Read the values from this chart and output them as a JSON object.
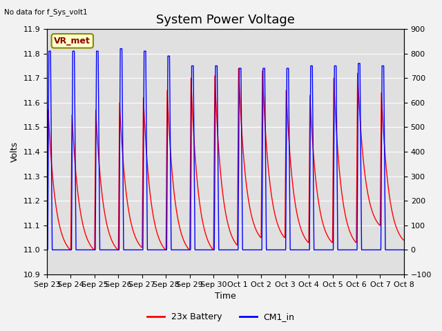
{
  "title": "System Power Voltage",
  "no_data_text": "No data for f_Sys_volt1",
  "xlabel": "Time",
  "ylabel": "Volts",
  "ylim": [
    10.9,
    11.9
  ],
  "ylim2": [
    -100,
    900
  ],
  "yticks": [
    10.9,
    11.0,
    11.1,
    11.2,
    11.3,
    11.4,
    11.5,
    11.6,
    11.7,
    11.8,
    11.9
  ],
  "yticks2": [
    -100,
    0,
    100,
    200,
    300,
    400,
    500,
    600,
    700,
    800,
    900
  ],
  "xtick_labels": [
    "Sep 23",
    "Sep 24",
    "Sep 25",
    "Sep 26",
    "Sep 27",
    "Sep 28",
    "Sep 29",
    "Sep 30",
    "Oct 1",
    "Oct 2",
    "Oct 3",
    "Oct 4",
    "Oct 5",
    "Oct 6",
    "Oct 7",
    "Oct 8"
  ],
  "vr_met_text": "VR_met",
  "legend": [
    "23x Battery",
    "CM1_in"
  ],
  "line_colors": [
    "red",
    "blue"
  ],
  "bg_color": "#e0e0e0",
  "title_fontsize": 13,
  "label_fontsize": 9,
  "tick_fontsize": 8,
  "red_peaks": [
    11.57,
    11.55,
    11.57,
    11.6,
    11.62,
    11.65,
    11.7,
    11.71,
    11.74,
    11.73,
    11.65,
    11.63,
    11.7,
    11.72,
    11.64
  ],
  "red_troughs": [
    11.04,
    11.0,
    11.0,
    11.0,
    11.01,
    11.0,
    11.0,
    11.0,
    11.02,
    11.05,
    11.05,
    11.03,
    11.03,
    11.03,
    11.1
  ],
  "blue_peaks": [
    11.81,
    11.81,
    11.81,
    11.82,
    11.81,
    11.79,
    11.75,
    11.75,
    11.74,
    11.74,
    11.74,
    11.75,
    11.75,
    11.76,
    11.75
  ],
  "blue_troughs": [
    11.0,
    11.0,
    11.0,
    11.0,
    11.0,
    11.0,
    11.0,
    11.0,
    11.0,
    11.0,
    11.0,
    11.0,
    11.0,
    11.0,
    11.0
  ],
  "n_cycles": 15
}
